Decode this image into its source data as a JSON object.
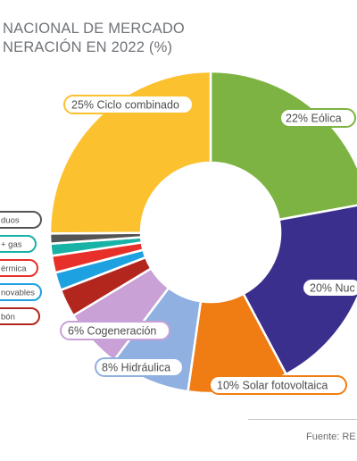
{
  "header": {
    "title_line1": "NACIONAL DE MERCADO",
    "title_line2": "NERACIÓN EN 2022 (%)"
  },
  "footer": {
    "source": "Fuente: RE"
  },
  "chart_data": {
    "type": "pie",
    "donut": true,
    "title": "NACIONAL DE MERCADO NERACIÓN EN 2022 (%)",
    "slices": [
      {
        "key": "eolica",
        "label": "22% Eólica",
        "value": 22,
        "color": "#7cb342"
      },
      {
        "key": "nuclear",
        "label": "20% Nuc",
        "value": 20,
        "color": "#3b2f8d"
      },
      {
        "key": "solar",
        "label": "10% Solar fotovoltaica",
        "value": 10,
        "color": "#f07c14"
      },
      {
        "key": "hidraulica",
        "label": "8% Hidráulica",
        "value": 8,
        "color": "#8fb0e0"
      },
      {
        "key": "cogen",
        "label": "6% Cogeneración",
        "value": 6,
        "color": "#c9a1d6"
      },
      {
        "key": "carbon",
        "label": "bón",
        "value": 2.8,
        "color": "#b3261e"
      },
      {
        "key": "renov",
        "label": "novables",
        "value": 1.8,
        "color": "#1ea1e0"
      },
      {
        "key": "termica",
        "label": "érmica",
        "value": 1.7,
        "color": "#e8302a"
      },
      {
        "key": "gas",
        "label": "+ gas",
        "value": 1.2,
        "color": "#19b3a6"
      },
      {
        "key": "residuos",
        "label": "duos",
        "value": 1.0,
        "color": "#545454"
      },
      {
        "key": "ciclo",
        "label": "25% Ciclo combinado",
        "value": 25,
        "color": "#fcc12e"
      }
    ]
  }
}
